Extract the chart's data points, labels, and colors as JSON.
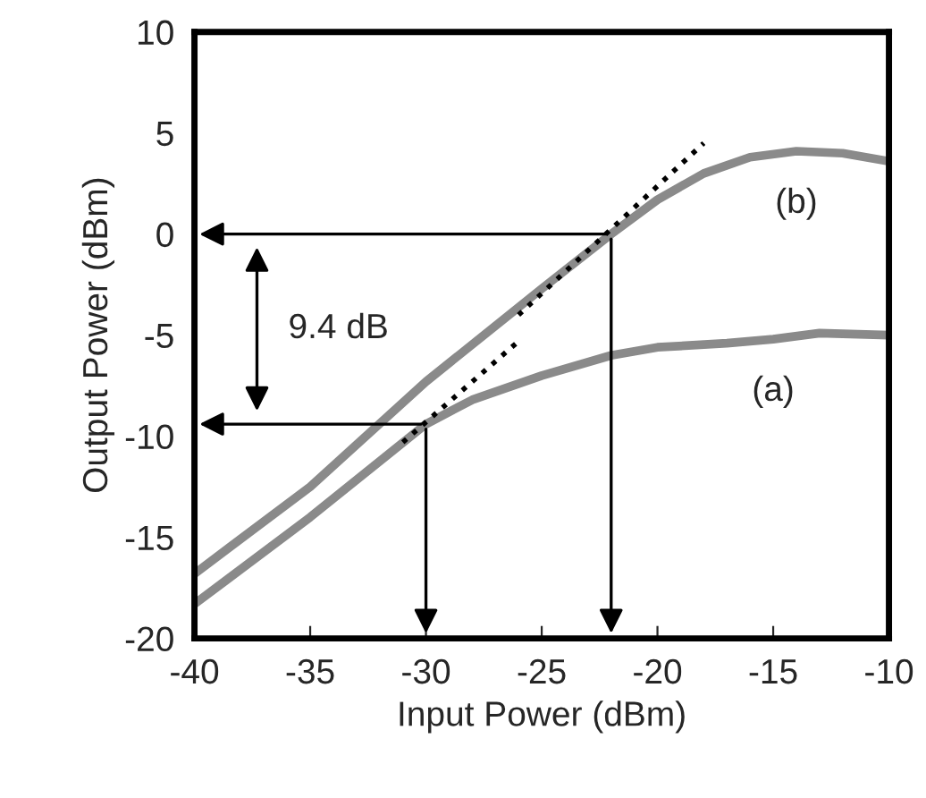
{
  "chart_data": {
    "type": "line",
    "xlabel": "Input Power (dBm)",
    "ylabel": "Output Power (dBm)",
    "xlim": [
      -40,
      -10
    ],
    "xticks": [
      -40,
      -35,
      -30,
      -25,
      -20,
      -15,
      -10
    ],
    "ylim": [
      -20,
      10
    ],
    "yticks": [
      -20,
      -15,
      -10,
      -5,
      0,
      5,
      10
    ],
    "grid": false,
    "legend": false,
    "series": [
      {
        "name": "(b)",
        "color": "#8a8a8a",
        "x": [
          -40,
          -35,
          -30,
          -25,
          -22,
          -20,
          -18,
          -16,
          -14,
          -12,
          -10
        ],
        "values": [
          -16.8,
          -12.5,
          -7.3,
          -2.7,
          0,
          1.7,
          3,
          3.8,
          4.1,
          4,
          3.6
        ]
      },
      {
        "name": "(a)",
        "color": "#8a8a8a",
        "x": [
          -40,
          -35,
          -30,
          -28,
          -25,
          -22,
          -20,
          -17,
          -15,
          -13,
          -10
        ],
        "values": [
          -18.3,
          -14,
          -9.4,
          -8.2,
          -7,
          -6,
          -5.6,
          -5.4,
          -5.2,
          -4.9,
          -5
        ]
      },
      {
        "color": "#000000",
        "line_style": "dotted",
        "x": [
          -26,
          -18
        ],
        "values": [
          -4,
          4.5
        ]
      },
      {
        "color": "#000000",
        "line_style": "dotted",
        "x": [
          -31,
          -26
        ],
        "values": [
          -10.3,
          -5.3
        ]
      }
    ],
    "annotations": [
      "9.4 dB"
    ]
  }
}
